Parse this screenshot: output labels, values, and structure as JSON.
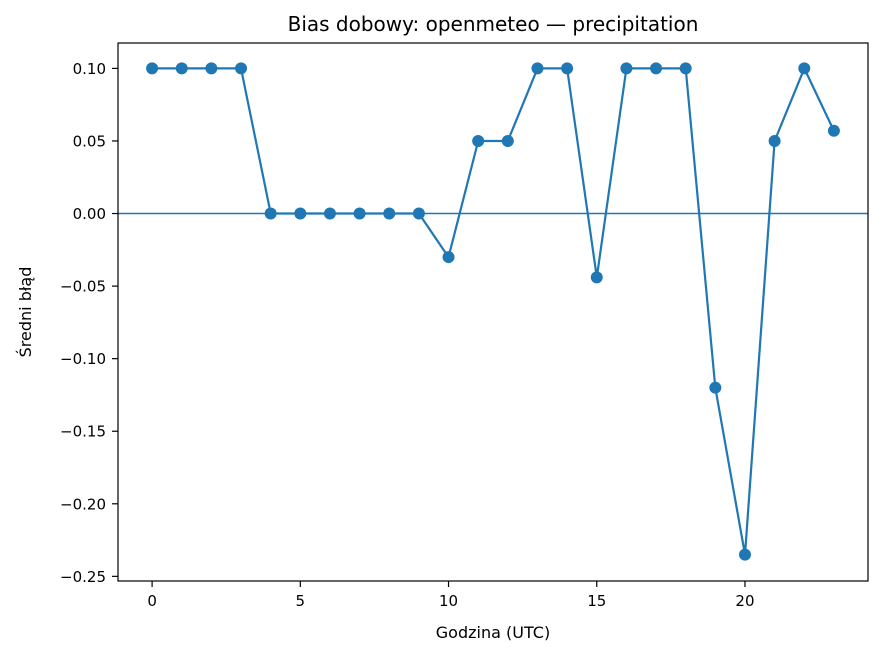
{
  "chart_data": {
    "type": "line",
    "title": "Bias dobowy: openmeteo — precipitation",
    "xlabel": "Godzina (UTC)",
    "ylabel": "Średni błąd",
    "xlim": [
      -1.15,
      24.15
    ],
    "ylim": [
      -0.2532,
      0.1175
    ],
    "x_ticks": [
      0,
      5,
      10,
      15,
      20
    ],
    "x_tick_labels": [
      "0",
      "5",
      "10",
      "15",
      "20"
    ],
    "y_ticks": [
      0.1,
      0.05,
      0.0,
      -0.05,
      -0.1,
      -0.15,
      -0.2,
      -0.25
    ],
    "y_tick_labels": [
      "0.10",
      "0.05",
      "0.00",
      "−0.05",
      "−0.10",
      "−0.15",
      "−0.20",
      "−0.25"
    ],
    "grid": false,
    "reference_line": 0,
    "colors": {
      "series": "#1f77b4",
      "axes": "#000000"
    },
    "series": [
      {
        "marker": "circle",
        "x": [
          0,
          1,
          2,
          3,
          4,
          5,
          6,
          7,
          8,
          9,
          10,
          11,
          12,
          13,
          14,
          15,
          16,
          17,
          18,
          19,
          20,
          21,
          22,
          23
        ],
        "values": [
          0.1,
          0.1,
          0.1,
          0.1,
          0.0,
          0.0,
          0.0,
          0.0,
          0.0,
          0.0,
          -0.03,
          0.05,
          0.05,
          0.1,
          0.1,
          -0.044,
          0.1,
          0.1,
          0.1,
          -0.12,
          -0.235,
          0.05,
          0.1,
          0.057
        ]
      }
    ]
  }
}
